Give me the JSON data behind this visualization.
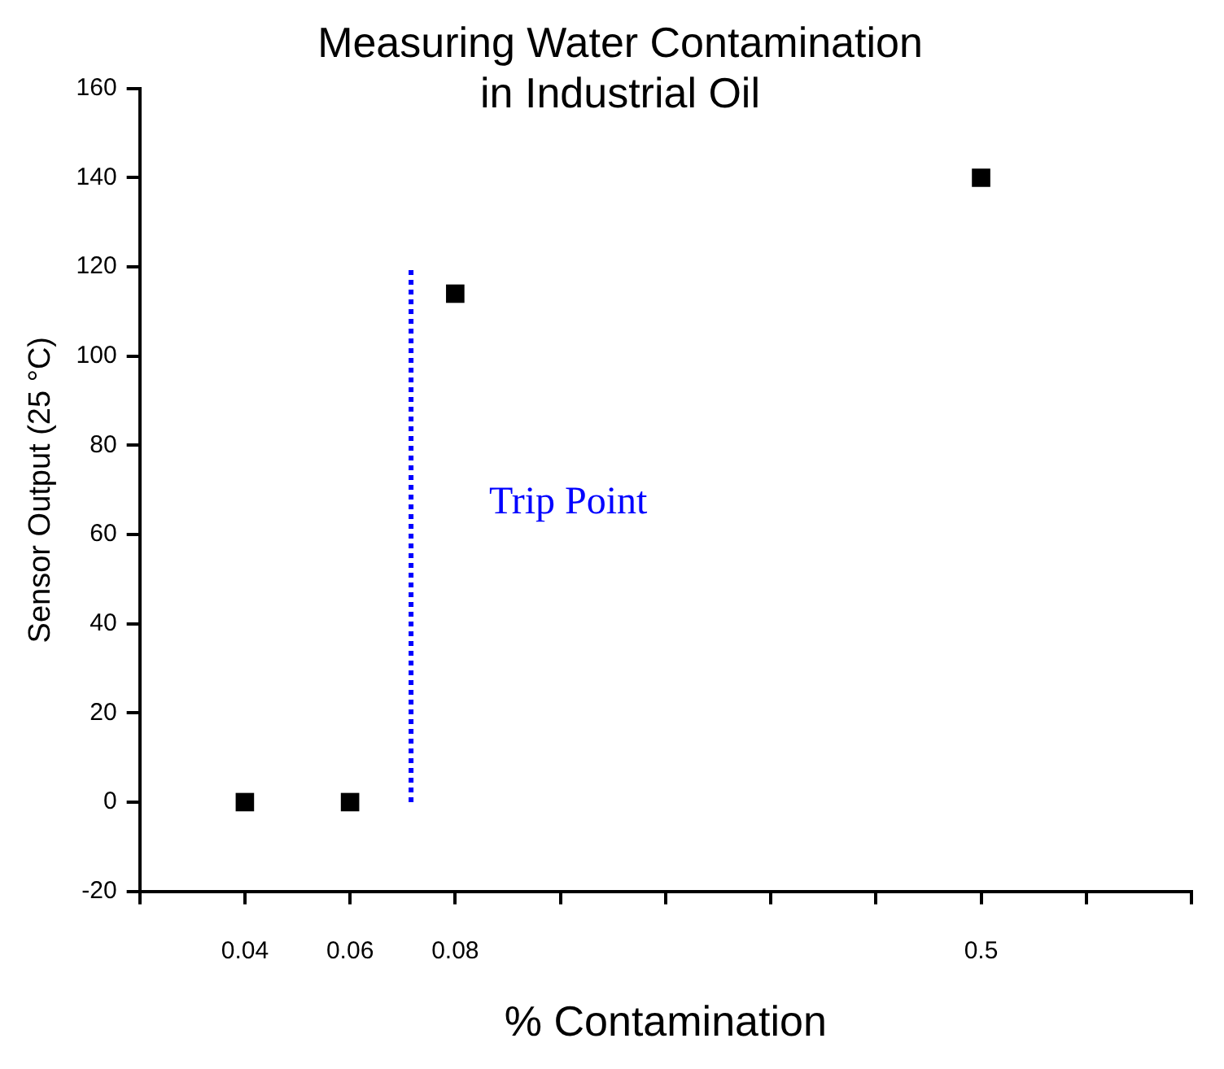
{
  "chart_data": {
    "type": "scatter",
    "title": [
      "Measuring Water Contamination",
      "in Industrial Oil"
    ],
    "xlabel": "% Contamination",
    "ylabel": "Sensor Output (25 °C)",
    "categories": [
      null,
      "0.04",
      "0.06",
      "0.08",
      null,
      null,
      null,
      null,
      "0.5",
      null,
      null
    ],
    "series": [
      {
        "color": "#000000",
        "values": [
          null,
          0,
          0,
          114,
          null,
          null,
          null,
          null,
          140,
          null,
          null
        ]
      }
    ],
    "marker": "square",
    "ylim": [
      -20,
      160
    ],
    "yticks": [
      -20,
      0,
      20,
      40,
      60,
      80,
      100,
      120,
      140,
      160
    ],
    "annotations": [
      "Trip Point"
    ],
    "grid": false,
    "legend": false
  }
}
